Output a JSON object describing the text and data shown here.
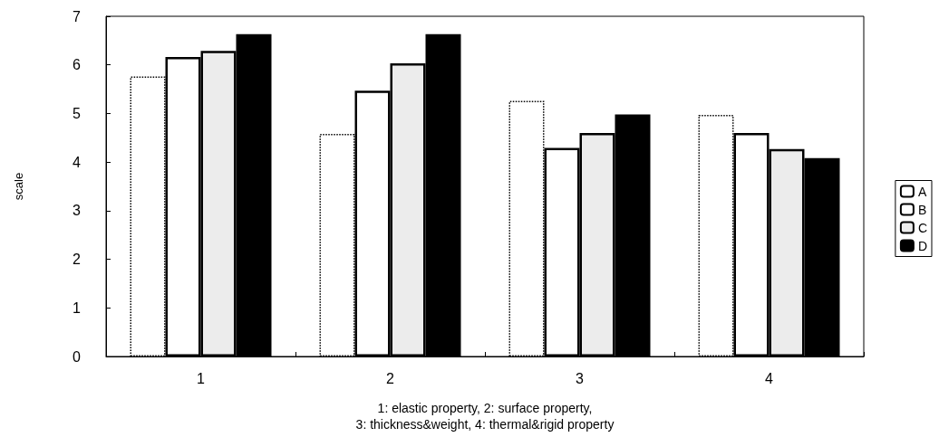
{
  "chart_data": {
    "type": "bar",
    "ylabel": "scale",
    "xlabel": "1: elastic property, 2: surface property,\n3: thickness&weight, 4: thermal&rigid property",
    "categories": [
      "1",
      "2",
      "3",
      "4"
    ],
    "series": [
      {
        "name": "A",
        "color": "#ffffff",
        "line_style": "dotted",
        "values": [
          5.76,
          4.58,
          5.26,
          4.97
        ]
      },
      {
        "name": "B",
        "color": "#ffffff",
        "values": [
          6.16,
          5.47,
          4.29,
          4.6
        ]
      },
      {
        "name": "C",
        "color": "#ececec",
        "values": [
          6.29,
          6.03,
          4.6,
          4.27
        ]
      },
      {
        "name": "D",
        "color": "#000000",
        "values": [
          6.63,
          6.63,
          4.98,
          4.08
        ]
      }
    ],
    "ylim": [
      0,
      7
    ],
    "yticks": [
      0,
      1,
      2,
      3,
      4,
      5,
      6,
      7
    ],
    "grid": false,
    "legend": "right"
  }
}
